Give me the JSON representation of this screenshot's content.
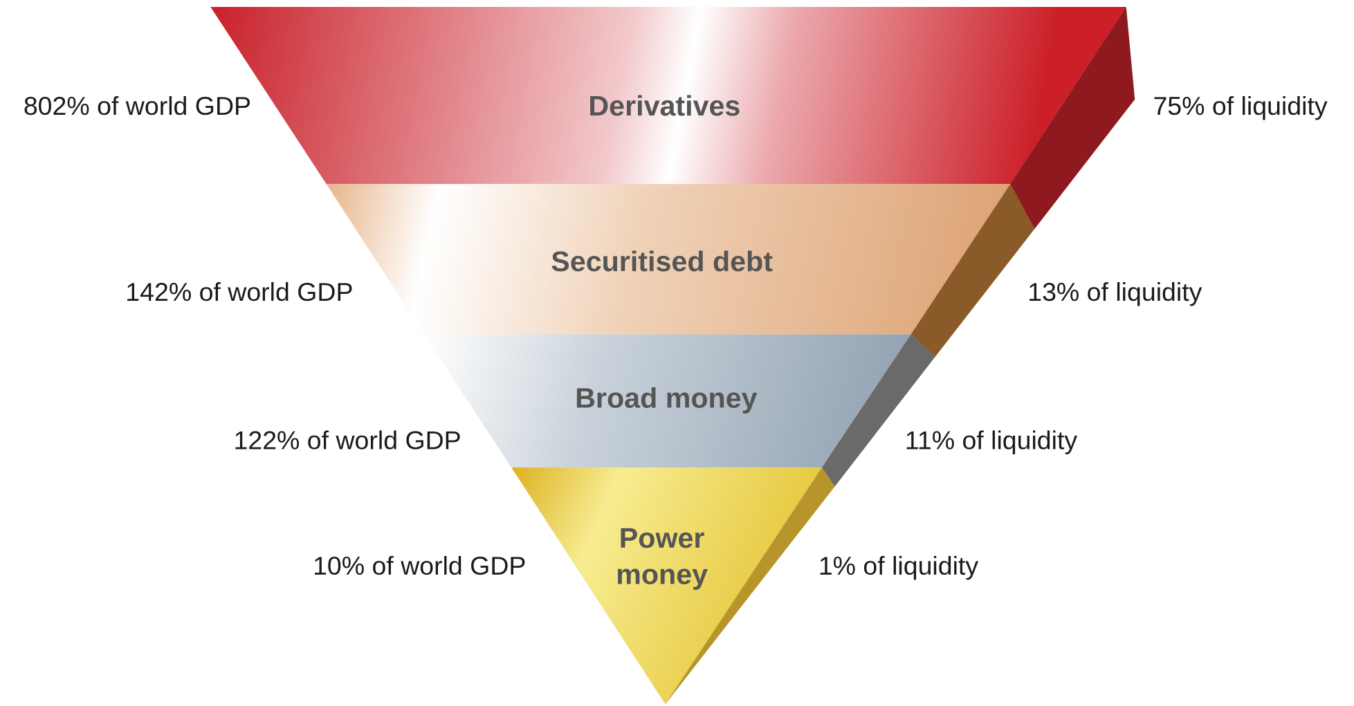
{
  "layers": [
    {
      "name": [
        "Derivatives"
      ],
      "left": "802% of world GDP",
      "right": "75% of liquidity"
    },
    {
      "name": [
        "Securitised debt"
      ],
      "left": "142% of world GDP",
      "right": "13% of liquidity"
    },
    {
      "name": [
        "Broad money"
      ],
      "left": "122% of world GDP",
      "right": "11% of liquidity"
    },
    {
      "name": [
        "Power",
        "money"
      ],
      "left": "10% of world GDP",
      "right": "1% of liquidity"
    }
  ]
}
